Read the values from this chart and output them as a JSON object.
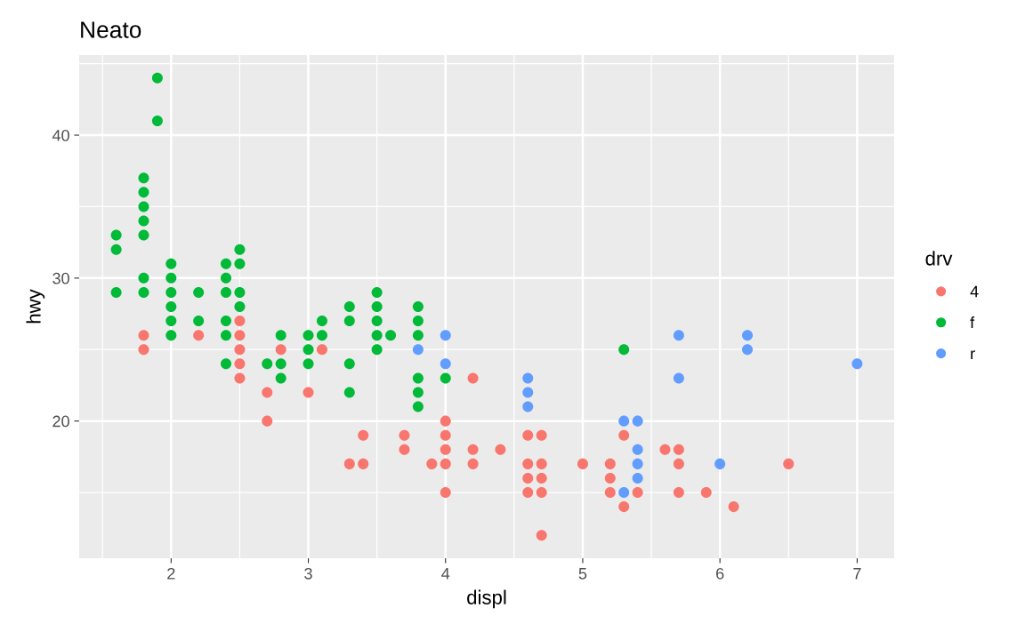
{
  "chart_data": {
    "type": "scatter",
    "title": "Neato",
    "xlabel": "displ",
    "ylabel": "hwy",
    "legend_title": "drv",
    "legend": "right",
    "grid": true,
    "marker": "circle",
    "xlim": [
      1.33,
      7.27
    ],
    "ylim": [
      10.4,
      45.6
    ],
    "xticks": [
      {
        "value": 1.5,
        "label": null
      },
      2,
      {
        "value": 2.5,
        "label": null
      },
      3,
      {
        "value": 3.5,
        "label": null
      },
      4,
      {
        "value": 4.5,
        "label": null
      },
      5,
      {
        "value": 5.5,
        "label": null
      },
      6,
      {
        "value": 6.5,
        "label": null
      },
      7
    ],
    "yticks": [
      {
        "value": 15,
        "label": null
      },
      20,
      {
        "value": 25,
        "label": null
      },
      30,
      {
        "value": 35,
        "label": null
      },
      40,
      {
        "value": 45,
        "label": null
      }
    ],
    "series": [
      {
        "name": "4",
        "color": "#f8766d",
        "x": [
          1.8,
          1.8,
          2.2,
          2.5,
          2.5,
          2.5,
          2.5,
          2.5,
          2.7,
          2.7,
          2.8,
          3.0,
          3.1,
          3.3,
          3.4,
          3.4,
          3.7,
          3.7,
          3.9,
          4.0,
          4.0,
          4.0,
          4.0,
          4.0,
          4.2,
          4.2,
          4.2,
          4.4,
          4.6,
          4.6,
          4.6,
          4.6,
          4.7,
          4.7,
          4.7,
          4.7,
          4.7,
          5.0,
          5.2,
          5.2,
          5.2,
          5.3,
          5.3,
          5.4,
          5.6,
          5.7,
          5.7,
          5.7,
          5.9,
          6.1,
          6.5
        ],
        "values": [
          26,
          25,
          26,
          27,
          26,
          25,
          24,
          23,
          22,
          20,
          25,
          22,
          25,
          17,
          19,
          17,
          19,
          18,
          17,
          20,
          19,
          18,
          17,
          15,
          23,
          18,
          17,
          18,
          19,
          17,
          16,
          15,
          19,
          17,
          16,
          15,
          12,
          17,
          17,
          16,
          15,
          19,
          14,
          15,
          18,
          18,
          17,
          15,
          15,
          14,
          17
        ]
      },
      {
        "name": "f",
        "color": "#00ba38",
        "x": [
          1.6,
          1.6,
          1.6,
          1.8,
          1.8,
          1.8,
          1.8,
          1.8,
          1.8,
          1.8,
          1.9,
          1.9,
          2.0,
          2.0,
          2.0,
          2.0,
          2.0,
          2.0,
          2.2,
          2.2,
          2.4,
          2.4,
          2.4,
          2.4,
          2.4,
          2.4,
          2.5,
          2.5,
          2.5,
          2.5,
          2.7,
          2.8,
          2.8,
          2.8,
          3.0,
          3.0,
          3.0,
          3.1,
          3.1,
          3.3,
          3.3,
          3.3,
          3.3,
          3.5,
          3.5,
          3.5,
          3.5,
          3.5,
          3.6,
          3.8,
          3.8,
          3.8,
          3.8,
          3.8,
          3.8,
          4.0,
          5.3
        ],
        "values": [
          33,
          32,
          29,
          37,
          36,
          35,
          34,
          33,
          30,
          29,
          44,
          41,
          31,
          30,
          29,
          28,
          27,
          26,
          29,
          27,
          31,
          30,
          29,
          27,
          26,
          24,
          32,
          31,
          29,
          28,
          24,
          26,
          24,
          23,
          26,
          25,
          24,
          27,
          26,
          28,
          27,
          24,
          22,
          29,
          28,
          27,
          26,
          25,
          26,
          28,
          27,
          26,
          23,
          22,
          21,
          23,
          25
        ]
      },
      {
        "name": "r",
        "color": "#619cff",
        "x": [
          3.8,
          4.0,
          4.0,
          4.6,
          4.6,
          4.6,
          5.3,
          5.3,
          5.4,
          5.4,
          5.4,
          5.4,
          5.7,
          5.7,
          6.0,
          6.2,
          6.2,
          7.0
        ],
        "values": [
          25,
          26,
          24,
          23,
          22,
          21,
          20,
          15,
          20,
          18,
          17,
          16,
          26,
          23,
          17,
          26,
          25,
          24
        ]
      }
    ]
  }
}
